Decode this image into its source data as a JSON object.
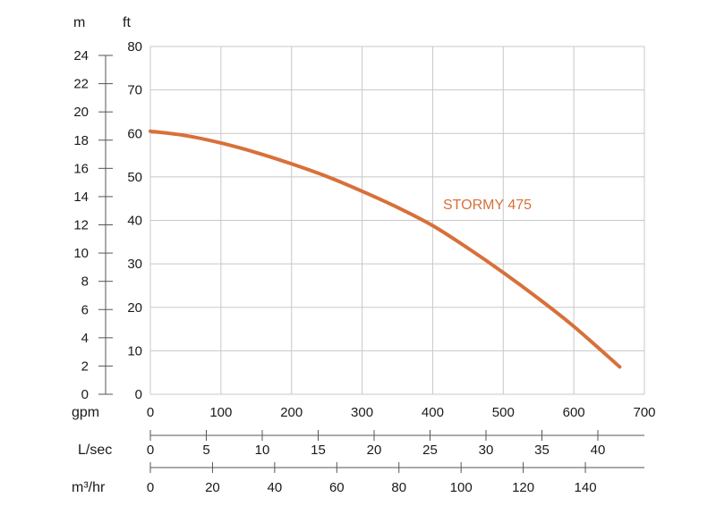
{
  "chart_data": {
    "type": "line",
    "title": "",
    "grid": true,
    "colors": {
      "curve": "#d8703a",
      "grid": "#c8c8c8",
      "axis": "#555555",
      "text": "#1a1a1a"
    },
    "left_axis_m": {
      "unit": "m",
      "ticks": [
        "0",
        "2",
        "4",
        "6",
        "8",
        "10",
        "12",
        "14",
        "16",
        "18",
        "20",
        "22",
        "24"
      ],
      "range": [
        0,
        24
      ]
    },
    "left_axis_ft": {
      "unit": "ft",
      "ticks": [
        "0",
        "10",
        "20",
        "30",
        "40",
        "50",
        "60",
        "70",
        "80"
      ],
      "range": [
        0,
        80
      ]
    },
    "x_axis_gpm": {
      "unit": "gpm",
      "ticks": [
        "0",
        "100",
        "200",
        "300",
        "400",
        "500",
        "600",
        "700"
      ],
      "range": [
        0,
        700
      ]
    },
    "x_axis_lsec": {
      "unit": "L/sec",
      "ticks": [
        "0",
        "5",
        "10",
        "15",
        "20",
        "25",
        "30",
        "35",
        "40"
      ]
    },
    "x_axis_m3hr": {
      "unit": "m³/hr",
      "ticks": [
        "0",
        "20",
        "40",
        "60",
        "80",
        "100",
        "120",
        "140"
      ]
    },
    "series": [
      {
        "name": "STORMY 475",
        "x": [
          0,
          50,
          100,
          150,
          200,
          250,
          300,
          350,
          400,
          450,
          500,
          550,
          600,
          665
        ],
        "y": [
          60.5,
          59.5,
          57.8,
          55.6,
          53,
          50.1,
          46.7,
          43,
          38.8,
          33.6,
          28,
          22,
          15.6,
          6.3
        ]
      }
    ]
  }
}
